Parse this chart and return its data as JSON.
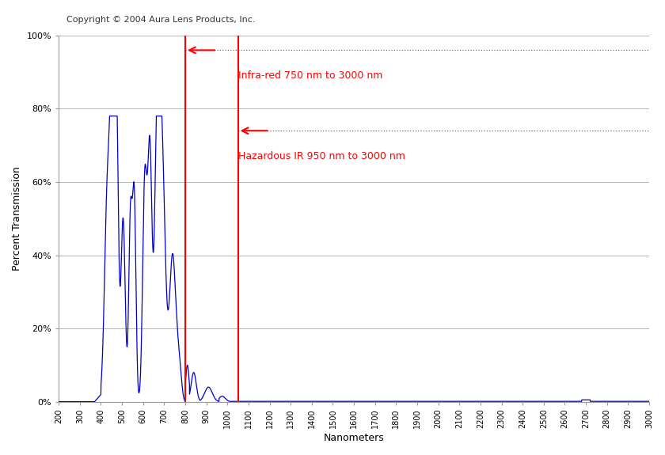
{
  "copyright_text": "Copyright © 2004 Aura Lens Products, Inc.",
  "xlabel": "Nanometers",
  "ylabel": "Percent Transmission",
  "xlim": [
    200,
    3000
  ],
  "ylim": [
    0,
    1.0
  ],
  "yticks": [
    0.0,
    0.2,
    0.4,
    0.6,
    0.8,
    1.0
  ],
  "ytick_labels": [
    "0%",
    "20%",
    "40%",
    "60%",
    "80%",
    "100%"
  ],
  "xticks": [
    200,
    300,
    400,
    500,
    600,
    700,
    800,
    900,
    1000,
    1100,
    1200,
    1300,
    1400,
    1500,
    1600,
    1700,
    1800,
    1900,
    2000,
    2100,
    2200,
    2300,
    2400,
    2500,
    2600,
    2700,
    2800,
    2900,
    3000
  ],
  "vline1_x": 800,
  "vline2_x": 1050,
  "hline1_y": 0.96,
  "hline2_y": 0.74,
  "arrow1_label": "Infra-red 750 nm to 3000 nm",
  "arrow2_label": "Hazardous IR 950 nm to 3000 nm",
  "line_color": "#0000cc",
  "red_color": "#ff0000",
  "grid_color": "#aaaaaa",
  "copyright_fontsize": 8,
  "axis_label_fontsize": 9,
  "tick_fontsize": 7,
  "annotation_fontsize": 9
}
